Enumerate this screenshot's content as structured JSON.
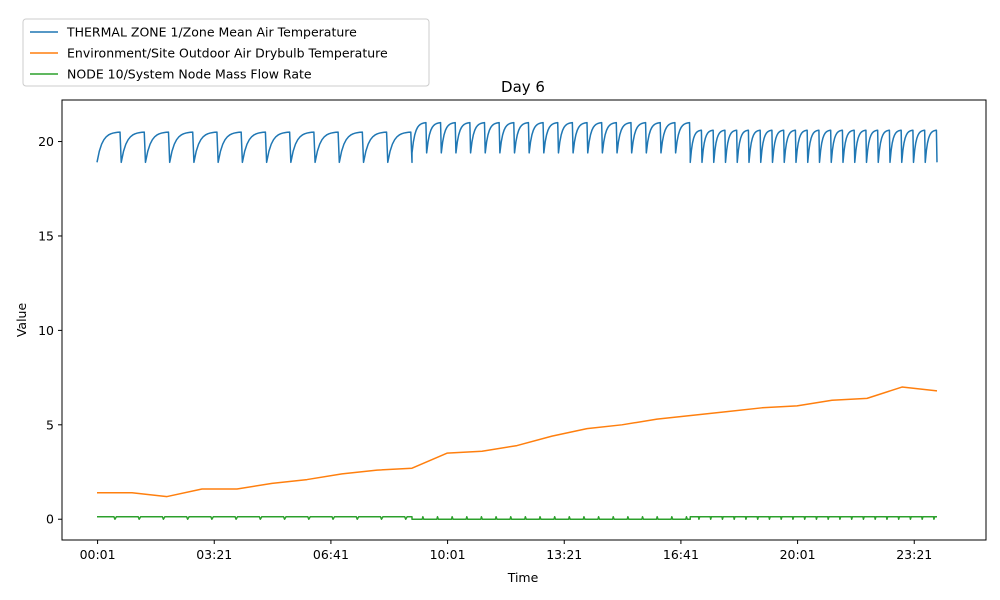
{
  "chart_data": {
    "type": "line",
    "title": "Day 6",
    "xlabel": "Time",
    "ylabel": "Value",
    "xlim_hours": [
      -1.0,
      25.4
    ],
    "ylim": [
      -1.1,
      22.2
    ],
    "x_ticks": [
      {
        "hours": 0.0167,
        "label": "00:01"
      },
      {
        "hours": 3.35,
        "label": "03:21"
      },
      {
        "hours": 6.683,
        "label": "06:41"
      },
      {
        "hours": 10.0167,
        "label": "10:01"
      },
      {
        "hours": 13.35,
        "label": "13:21"
      },
      {
        "hours": 16.683,
        "label": "16:41"
      },
      {
        "hours": 20.0167,
        "label": "20:01"
      },
      {
        "hours": 23.35,
        "label": "23:21"
      }
    ],
    "y_ticks": [
      0,
      5,
      10,
      15,
      20
    ],
    "grid": false,
    "legend_position": "top-left outside plot",
    "series": [
      {
        "name": "THERMAL ZONE 1/Zone Mean Air Temperature",
        "color": "#1f77b4",
        "pattern": "sawtooth",
        "segments": [
          {
            "start": 0.0,
            "end": 9.0,
            "period": 0.72,
            "low": 18.9,
            "high": 20.5
          },
          {
            "start": 9.0,
            "end": 16.95,
            "period": 0.42,
            "low": 19.4,
            "high": 21.0
          },
          {
            "start": 16.95,
            "end": 24.0,
            "period": 0.33,
            "low": 18.9,
            "high": 20.6
          }
        ]
      },
      {
        "name": "Environment/Site Outdoor Air Drybulb Temperature",
        "color": "#ff7f0e",
        "x": [
          0.0,
          1.0,
          2.0,
          3.0,
          4.0,
          5.0,
          6.0,
          7.0,
          8.0,
          9.0,
          10.0,
          11.0,
          12.0,
          13.0,
          14.0,
          15.0,
          16.0,
          17.0,
          18.0,
          19.0,
          20.0,
          21.0,
          22.0,
          23.0,
          24.0
        ],
        "y": [
          1.4,
          1.4,
          1.2,
          1.6,
          1.6,
          1.9,
          2.1,
          2.4,
          2.6,
          2.7,
          3.5,
          3.6,
          3.9,
          4.4,
          4.8,
          5.0,
          5.3,
          5.5,
          5.7,
          5.9,
          6.0,
          6.3,
          6.4,
          7.0,
          6.8
        ]
      },
      {
        "name": "NODE 10/System Node Mass Flow Rate",
        "color": "#2ca02c",
        "pattern": "pulse",
        "segments": [
          {
            "start": 0.0,
            "end": 9.0,
            "period": 0.72,
            "base": 0.13,
            "dip": 0.0
          },
          {
            "start": 9.0,
            "end": 16.95,
            "period": 0.42,
            "base": 0.0,
            "dip": 0.13
          },
          {
            "start": 16.95,
            "end": 24.0,
            "period": 0.33,
            "base": 0.13,
            "dip": 0.0
          }
        ]
      }
    ]
  }
}
